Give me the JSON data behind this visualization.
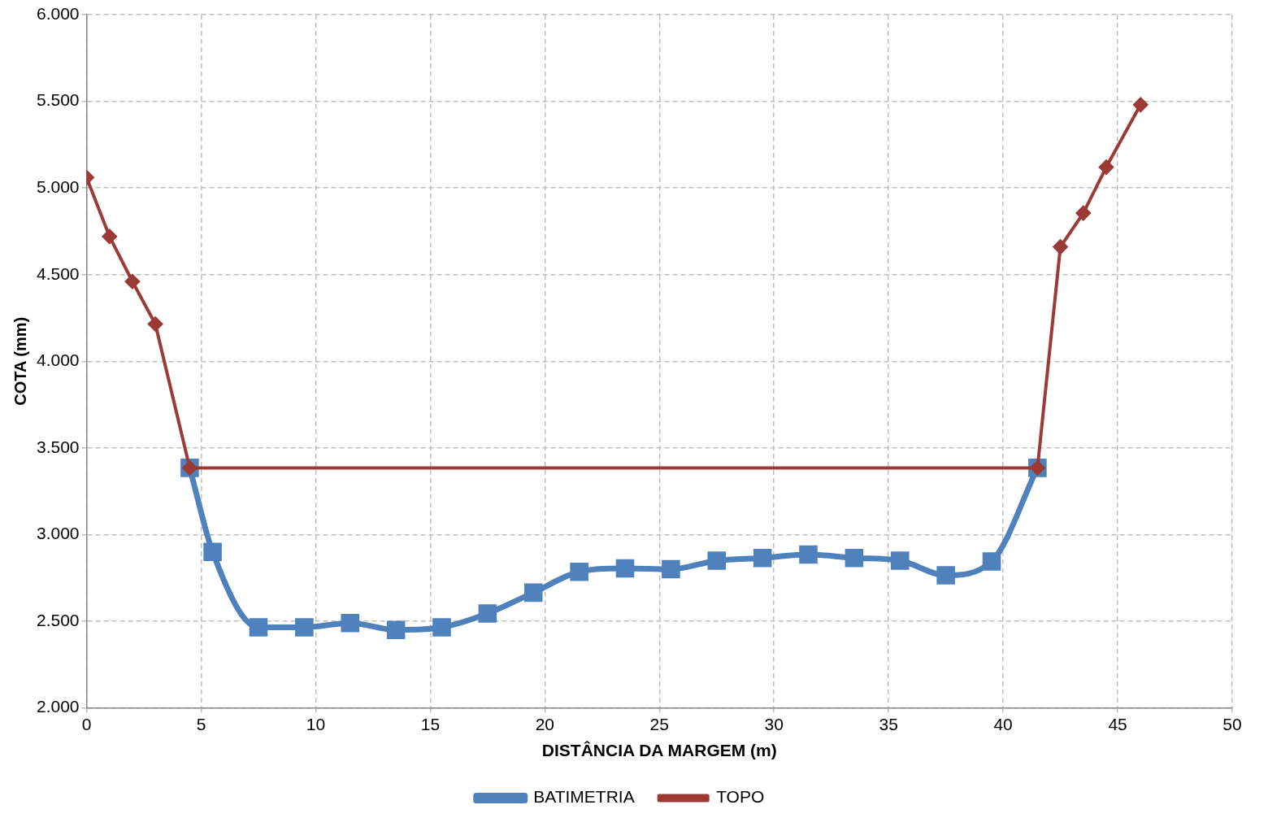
{
  "chart_data": {
    "type": "line",
    "xlabel": "DISTÂNCIA DA MARGEM (m)",
    "ylabel": "COTA (mm)",
    "xlim": [
      0,
      50
    ],
    "xticks": [
      0,
      5,
      10,
      15,
      20,
      25,
      30,
      35,
      40,
      45,
      50
    ],
    "ylim": [
      2000,
      6000
    ],
    "yticks": [
      {
        "value": 2000,
        "label": "2.000"
      },
      {
        "value": 2500,
        "label": "2.500"
      },
      {
        "value": 3000,
        "label": "3.000"
      },
      {
        "value": 3500,
        "label": "3.500"
      },
      {
        "value": 4000,
        "label": "4.000"
      },
      {
        "value": 4500,
        "label": "4.500"
      },
      {
        "value": 5000,
        "label": "5.000"
      },
      {
        "value": 5500,
        "label": "5.500"
      },
      {
        "value": 6000,
        "label": "6.000"
      }
    ],
    "grid": true,
    "legend": "bottom",
    "series": [
      {
        "name": "BATIMETRIA",
        "color": "#4f81bd",
        "marker": "square",
        "line_style": "solid",
        "x": [
          4.5,
          5.5,
          7.5,
          9.5,
          11.5,
          13.5,
          15.5,
          17.5,
          19.5,
          21.5,
          23.5,
          25.5,
          27.5,
          29.5,
          31.5,
          33.5,
          35.5,
          37.5,
          39.5,
          41.5
        ],
        "values": [
          3385,
          2900,
          2465,
          2465,
          2490,
          2450,
          2465,
          2545,
          2665,
          2785,
          2805,
          2800,
          2850,
          2865,
          2885,
          2865,
          2850,
          2765,
          2845,
          3385
        ]
      },
      {
        "name": "TOPO",
        "color": "#9c3a35",
        "marker": "diamond",
        "line_style": "solid",
        "x": [
          0,
          1,
          2,
          3,
          4.5,
          41.5,
          42.5,
          43.5,
          44.5,
          46
        ],
        "values": [
          5060,
          4720,
          4460,
          4215,
          3385,
          3385,
          4660,
          4855,
          5120,
          5480
        ]
      }
    ]
  }
}
